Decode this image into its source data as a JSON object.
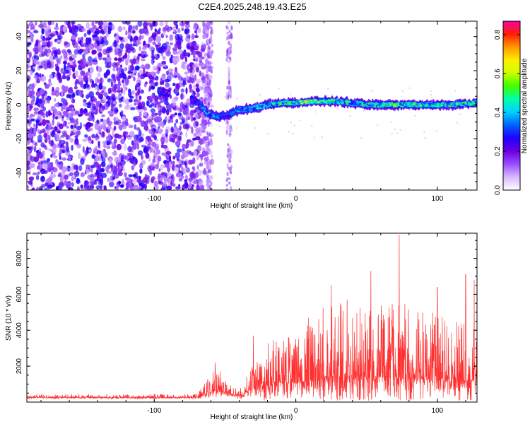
{
  "title": "C2E4.2025.248.19.43.E25",
  "chart_data": [
    {
      "type": "heatmap",
      "name": "spectrogram",
      "xlabel": "Height of straight line (km)",
      "ylabel": "Frequency (Hz)",
      "xlim": [
        -190,
        128
      ],
      "ylim": [
        -50,
        49
      ],
      "xticks": [
        -100,
        0,
        100
      ],
      "yticks": [
        -40,
        -20,
        0,
        20,
        40
      ],
      "xtick_labels": [
        "-100",
        "0",
        "100"
      ],
      "ytick_labels": [
        "-40",
        "-20",
        "0",
        "20",
        "40"
      ],
      "colorbar": {
        "label": "Normalized spectral amplitude",
        "range": [
          0.0,
          0.87
        ],
        "ticks": [
          0.0,
          0.2,
          0.4,
          0.6,
          0.8
        ],
        "tick_labels": [
          "0.0",
          "0.2",
          "0.4",
          "0.6",
          "0.8"
        ],
        "colors": [
          "#ffffff",
          "#d9b8ff",
          "#9a4dff",
          "#6a00e0",
          "#2000ff",
          "#0060ff",
          "#00d0ff",
          "#00ffaa",
          "#40ff00",
          "#ccff00",
          "#ffee00",
          "#ff9900",
          "#ff2000",
          "#ff00a0"
        ]
      },
      "noise_region_x": [
        -190,
        -65
      ],
      "noise_amplitude": 0.1,
      "band": [
        {
          "x": -97,
          "f": 8,
          "amp": 0.35
        },
        {
          "x": -92,
          "f": 7,
          "amp": 0.3
        },
        {
          "x": -82,
          "f": 6,
          "amp": 0.2
        },
        {
          "x": -70,
          "f": 2,
          "amp": 0.35
        },
        {
          "x": -62,
          "f": -5,
          "amp": 0.45
        },
        {
          "x": -55,
          "f": -7,
          "amp": 0.4
        },
        {
          "x": -48,
          "f": -6,
          "amp": 0.35
        },
        {
          "x": -40,
          "f": -3,
          "amp": 0.4
        },
        {
          "x": -30,
          "f": -2,
          "amp": 0.45
        },
        {
          "x": -20,
          "f": 0,
          "amp": 0.5
        },
        {
          "x": -10,
          "f": 1,
          "amp": 0.55
        },
        {
          "x": 0,
          "f": 1,
          "amp": 0.6
        },
        {
          "x": 10,
          "f": 2,
          "amp": 0.75
        },
        {
          "x": 20,
          "f": 2,
          "amp": 0.6
        },
        {
          "x": 30,
          "f": 2,
          "amp": 0.55
        },
        {
          "x": 40,
          "f": 1,
          "amp": 0.5
        },
        {
          "x": 50,
          "f": 0,
          "amp": 0.55
        },
        {
          "x": 60,
          "f": 0,
          "amp": 0.5
        },
        {
          "x": 70,
          "f": 0,
          "amp": 0.6
        },
        {
          "x": 80,
          "f": 0,
          "amp": 0.55
        },
        {
          "x": 90,
          "f": 0,
          "amp": 0.6
        },
        {
          "x": 100,
          "f": 0,
          "amp": 0.55
        },
        {
          "x": 110,
          "f": 0,
          "amp": 0.6
        },
        {
          "x": 128,
          "f": 1,
          "amp": 0.55
        }
      ]
    },
    {
      "type": "line",
      "name": "snr",
      "xlabel": "Height of straight line (km)",
      "ylabel": "SNR (10 * v/v)",
      "xlim": [
        -190,
        128
      ],
      "ylim": [
        0,
        9400
      ],
      "xticks": [
        -100,
        0,
        100
      ],
      "yticks": [
        2000,
        4000,
        6000,
        8000
      ],
      "xtick_labels": [
        "-100",
        "0",
        "100"
      ],
      "ytick_labels": [
        "2000",
        "4000",
        "6000",
        "8000"
      ],
      "color": "#ff3030",
      "envelope": [
        {
          "x": -190,
          "base": 250,
          "spread": 200
        },
        {
          "x": -70,
          "base": 250,
          "spread": 200
        },
        {
          "x": -62,
          "base": 500,
          "spread": 800
        },
        {
          "x": -55,
          "base": 700,
          "spread": 1300
        },
        {
          "x": -48,
          "base": 500,
          "spread": 500
        },
        {
          "x": -40,
          "base": 300,
          "spread": 400
        },
        {
          "x": -32,
          "base": 700,
          "spread": 1200
        },
        {
          "x": -22,
          "base": 900,
          "spread": 2400
        },
        {
          "x": -10,
          "base": 1100,
          "spread": 2700
        },
        {
          "x": 0,
          "base": 1100,
          "spread": 2400
        },
        {
          "x": 10,
          "base": 1200,
          "spread": 3300
        },
        {
          "x": 20,
          "base": 1400,
          "spread": 4200
        },
        {
          "x": 35,
          "base": 1500,
          "spread": 4300
        },
        {
          "x": 50,
          "base": 1400,
          "spread": 4600
        },
        {
          "x": 60,
          "base": 1400,
          "spread": 4300
        },
        {
          "x": 72,
          "base": 1400,
          "spread": 4600
        },
        {
          "x": 85,
          "base": 1300,
          "spread": 3900
        },
        {
          "x": 100,
          "base": 1300,
          "spread": 3700
        },
        {
          "x": 115,
          "base": 1200,
          "spread": 3400
        },
        {
          "x": 128,
          "base": 1200,
          "spread": 3200
        }
      ],
      "peaks": [
        {
          "x": 73,
          "y": 9300
        },
        {
          "x": 53,
          "y": 7300
        },
        {
          "x": 120,
          "y": 7100
        },
        {
          "x": 126,
          "y": 6800
        },
        {
          "x": 100,
          "y": 6400
        },
        {
          "x": 25,
          "y": 6500
        },
        {
          "x": -57,
          "y": 2200
        },
        {
          "x": -30,
          "y": 3700
        },
        {
          "x": 9,
          "y": 4700
        }
      ]
    }
  ]
}
